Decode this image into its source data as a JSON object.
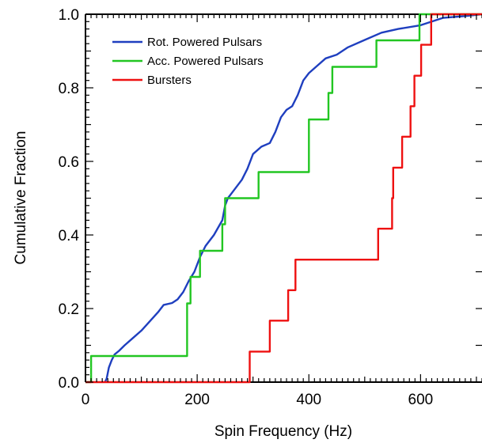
{
  "chart_data": {
    "type": "line",
    "xlabel": "Spin Frequency (Hz)",
    "ylabel": "Cumulative Fraction",
    "xlim": [
      0,
      710
    ],
    "ylim": [
      0,
      1.0
    ],
    "x_ticks": [
      "0",
      "200",
      "400",
      "600"
    ],
    "x_tick_values": [
      0,
      200,
      400,
      600
    ],
    "y_ticks": [
      "0.0",
      "0.2",
      "0.4",
      "0.6",
      "0.8",
      "1.0"
    ],
    "y_tick_values": [
      0,
      0.2,
      0.4,
      0.6,
      0.8,
      1.0
    ],
    "legend_position": "top-left",
    "grid": false,
    "series": [
      {
        "name": "Rot. Powered Pulsars",
        "color": "#1f3fbf",
        "step": false,
        "points": [
          [
            35,
            0
          ],
          [
            38,
            0.01
          ],
          [
            42,
            0.04
          ],
          [
            47,
            0.06
          ],
          [
            52,
            0.075
          ],
          [
            60,
            0.085
          ],
          [
            70,
            0.1
          ],
          [
            85,
            0.12
          ],
          [
            100,
            0.14
          ],
          [
            115,
            0.165
          ],
          [
            130,
            0.19
          ],
          [
            140,
            0.21
          ],
          [
            155,
            0.215
          ],
          [
            165,
            0.225
          ],
          [
            175,
            0.245
          ],
          [
            185,
            0.275
          ],
          [
            195,
            0.3
          ],
          [
            205,
            0.34
          ],
          [
            215,
            0.37
          ],
          [
            230,
            0.4
          ],
          [
            245,
            0.44
          ],
          [
            250,
            0.48
          ],
          [
            255,
            0.5
          ],
          [
            265,
            0.52
          ],
          [
            280,
            0.55
          ],
          [
            290,
            0.58
          ],
          [
            300,
            0.62
          ],
          [
            315,
            0.64
          ],
          [
            330,
            0.65
          ],
          [
            340,
            0.68
          ],
          [
            350,
            0.72
          ],
          [
            360,
            0.74
          ],
          [
            370,
            0.75
          ],
          [
            380,
            0.78
          ],
          [
            390,
            0.82
          ],
          [
            400,
            0.84
          ],
          [
            415,
            0.86
          ],
          [
            430,
            0.88
          ],
          [
            450,
            0.89
          ],
          [
            470,
            0.91
          ],
          [
            500,
            0.93
          ],
          [
            530,
            0.95
          ],
          [
            560,
            0.96
          ],
          [
            600,
            0.97
          ],
          [
            640,
            0.99
          ],
          [
            680,
            0.995
          ],
          [
            710,
            1.0
          ]
        ]
      },
      {
        "name": "Acc. Powered Pulsars",
        "color": "#22c622",
        "step": true,
        "points": [
          [
            0,
            0
          ],
          [
            10,
            0
          ],
          [
            10,
            0.071
          ],
          [
            182,
            0.071
          ],
          [
            182,
            0.214
          ],
          [
            188,
            0.214
          ],
          [
            188,
            0.286
          ],
          [
            205,
            0.286
          ],
          [
            205,
            0.357
          ],
          [
            245,
            0.357
          ],
          [
            245,
            0.429
          ],
          [
            250,
            0.429
          ],
          [
            250,
            0.5
          ],
          [
            310,
            0.5
          ],
          [
            310,
            0.571
          ],
          [
            400,
            0.571
          ],
          [
            400,
            0.714
          ],
          [
            435,
            0.714
          ],
          [
            435,
            0.786
          ],
          [
            442,
            0.786
          ],
          [
            442,
            0.857
          ],
          [
            521,
            0.857
          ],
          [
            521,
            0.929
          ],
          [
            598,
            0.929
          ],
          [
            598,
            1.0
          ],
          [
            710,
            1.0
          ]
        ]
      },
      {
        "name": "Bursters",
        "color": "#ee1111",
        "step": true,
        "points": [
          [
            0,
            0
          ],
          [
            294,
            0
          ],
          [
            294,
            0.083
          ],
          [
            330,
            0.083
          ],
          [
            330,
            0.167
          ],
          [
            363,
            0.167
          ],
          [
            363,
            0.25
          ],
          [
            376,
            0.25
          ],
          [
            376,
            0.333
          ],
          [
            524,
            0.333
          ],
          [
            524,
            0.417
          ],
          [
            549,
            0.417
          ],
          [
            549,
            0.5
          ],
          [
            551,
            0.5
          ],
          [
            551,
            0.583
          ],
          [
            567,
            0.583
          ],
          [
            567,
            0.667
          ],
          [
            582,
            0.667
          ],
          [
            582,
            0.75
          ],
          [
            589,
            0.75
          ],
          [
            589,
            0.833
          ],
          [
            601,
            0.833
          ],
          [
            601,
            0.917
          ],
          [
            619,
            0.917
          ],
          [
            619,
            1.0
          ],
          [
            710,
            1.0
          ]
        ]
      }
    ]
  }
}
